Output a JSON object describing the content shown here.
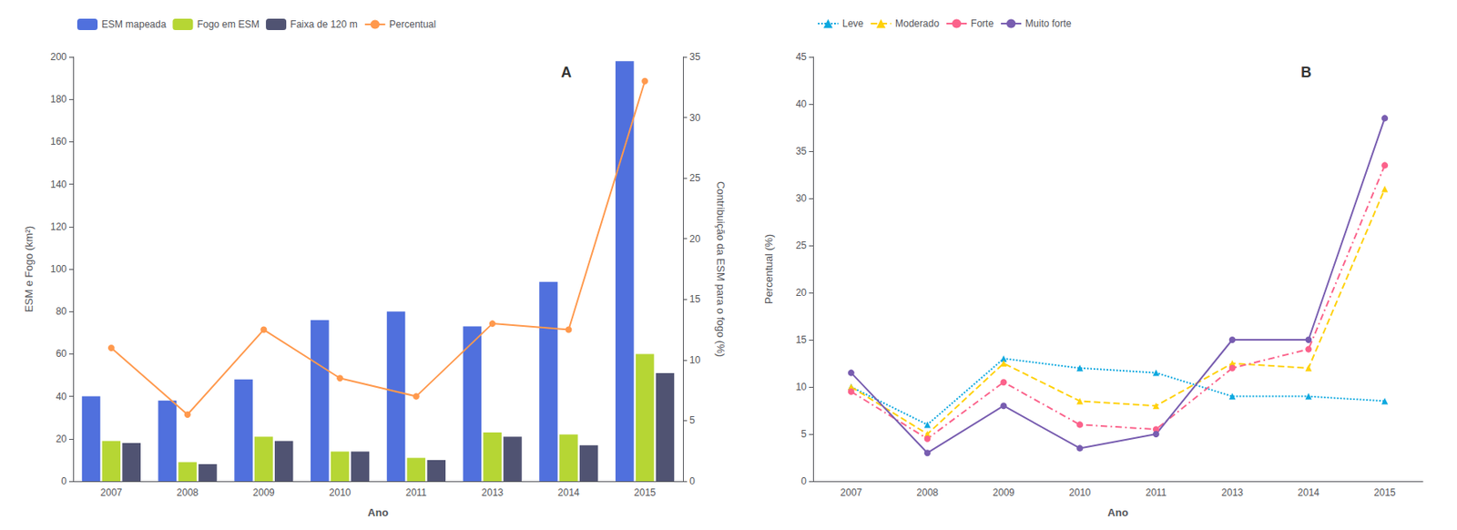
{
  "chart_data": [
    {
      "type": "bar",
      "categories": [
        "2007",
        "2008",
        "2009",
        "2010",
        "2011",
        "2013",
        "2014",
        "2015"
      ],
      "series": [
        {
          "name": "ESM mapeada",
          "values": [
            40,
            38,
            48,
            76,
            80,
            73,
            94,
            198
          ]
        },
        {
          "name": "Fogo em ESM",
          "values": [
            19,
            9,
            21,
            14,
            11,
            23,
            22,
            60
          ]
        },
        {
          "name": "Faixa de 120 m",
          "values": [
            18,
            8,
            19,
            14,
            10,
            21,
            17,
            51
          ]
        },
        {
          "name": "Percentual",
          "type": "line",
          "axis": "y2",
          "marker": "circle",
          "line_style": "solid",
          "values": [
            11,
            5.5,
            12.5,
            8.5,
            7,
            13,
            12.5,
            33
          ]
        }
      ],
      "xlabel": "Ano",
      "ylabel": "ESM e Fogo (km²)",
      "y2label": "Contribuição da ESM para o fogo (%)",
      "ylim": [
        0,
        200
      ],
      "yticks": [
        0,
        20,
        40,
        60,
        80,
        100,
        120,
        140,
        160,
        180,
        200
      ],
      "y2lim": [
        0,
        35
      ],
      "y2ticks": [
        0,
        5,
        10,
        15,
        20,
        25,
        30,
        35
      ],
      "annotation": "A",
      "legend": "upper left",
      "grid": false
    },
    {
      "type": "line",
      "categories": [
        "2007",
        "2008",
        "2009",
        "2010",
        "2011",
        "2013",
        "2014",
        "2015"
      ],
      "series": [
        {
          "name": "Leve",
          "marker": "triangle",
          "line_style": "dotted",
          "values": [
            10,
            6,
            13,
            12,
            11.5,
            9,
            9,
            8.5
          ]
        },
        {
          "name": "Moderado",
          "marker": "triangle",
          "line_style": "dashed",
          "values": [
            10,
            5,
            12.5,
            8.5,
            8,
            12.5,
            12,
            31
          ]
        },
        {
          "name": "Forte",
          "marker": "circle",
          "line_style": "dashdot",
          "values": [
            9.5,
            4.5,
            10.5,
            6,
            5.5,
            12,
            14,
            33.5
          ]
        },
        {
          "name": "Muito forte",
          "marker": "circle",
          "line_style": "solid",
          "values": [
            11.5,
            3,
            8,
            3.5,
            5,
            15,
            15,
            38.5
          ]
        }
      ],
      "xlabel": "Ano",
      "ylabel": "Percentual (%)",
      "ylim": [
        0,
        45
      ],
      "yticks": [
        0,
        5,
        10,
        15,
        20,
        25,
        30,
        35,
        40,
        45
      ],
      "annotation": "B",
      "legend": "upper left",
      "grid": false
    }
  ]
}
